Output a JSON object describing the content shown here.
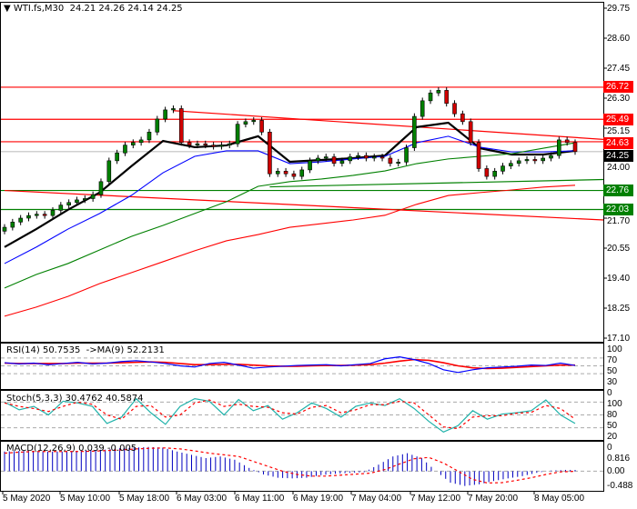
{
  "header": {
    "symbol": "WTI.fs,M30",
    "ohlc": "24.21 24.26 24.14 24.25",
    "menu_icon": "triangle-down-icon"
  },
  "chart_data": {
    "type": "candlestick",
    "price_ticks": [
      "29.75",
      "28.60",
      "27.45",
      "26.30",
      "25.15",
      "24.00",
      "21.70",
      "20.55",
      "19.40",
      "18.25",
      "17.10"
    ],
    "ylim": [
      17.1,
      29.75
    ],
    "closes": [
      21.35,
      21.55,
      21.7,
      21.8,
      21.85,
      21.8,
      22.0,
      22.2,
      22.3,
      22.4,
      22.45,
      22.6,
      23.1,
      23.9,
      24.2,
      24.5,
      24.6,
      24.7,
      25.0,
      25.5,
      25.85,
      25.9,
      24.6,
      24.5,
      24.55,
      24.5,
      24.45,
      24.5,
      24.55,
      25.3,
      25.4,
      25.45,
      25.0,
      23.4,
      23.5,
      23.4,
      23.3,
      23.55,
      23.9,
      24.0,
      24.05,
      23.8,
      23.9,
      24.05,
      24.1,
      24.0,
      24.05,
      24.0,
      23.8,
      23.85,
      24.4,
      25.6,
      26.2,
      26.5,
      26.6,
      26.1,
      25.7,
      25.4,
      24.6,
      23.6,
      23.3,
      23.5,
      23.7,
      23.8,
      23.9,
      23.95,
      23.9,
      24.0,
      24.1,
      24.7,
      24.6,
      24.25
    ],
    "moving_averages": [
      {
        "color": "#000000",
        "values": [
          20.59,
          21.28,
          22.02,
          22.68,
          23.69,
          24.66,
          24.42,
          24.49,
          24.84,
          23.86,
          23.93,
          24.0,
          24.1,
          25.19,
          25.36,
          24.38,
          24.14,
          24.14,
          24.28
        ]
      },
      {
        "color": "#0000ff",
        "values": [
          19.96,
          20.59,
          21.28,
          21.88,
          22.57,
          23.44,
          24.07,
          24.28,
          24.28,
          23.79,
          23.86,
          23.97,
          24.07,
          24.59,
          24.84,
          24.42,
          24.24,
          24.24,
          24.28
        ]
      },
      {
        "color": "#008000",
        "values": [
          19.02,
          19.54,
          19.96,
          20.48,
          21.0,
          21.42,
          21.88,
          22.33,
          22.92,
          23.1,
          23.2,
          23.34,
          23.51,
          23.79,
          23.97,
          24.07,
          24.17,
          24.38,
          24.59
        ]
      },
      {
        "color": "#ff0000",
        "values": [
          17.94,
          18.29,
          18.7,
          19.19,
          19.61,
          20.03,
          20.45,
          20.83,
          21.07,
          21.35,
          21.49,
          21.63,
          21.81,
          22.23,
          22.57,
          22.68,
          22.78,
          22.89,
          22.96
        ]
      }
    ],
    "levels": [
      {
        "price": 26.72,
        "label": "26.72",
        "color": "#ff0000"
      },
      {
        "price": 25.49,
        "label": "25.49",
        "color": "#ff0000"
      },
      {
        "price": 24.63,
        "label": "24.63",
        "color": "#ff0000"
      },
      {
        "price": 24.25,
        "label": "24.25",
        "color": "#000000",
        "line": "#c0c0c0"
      },
      {
        "price": 22.76,
        "label": "22.76",
        "color": "#008000"
      },
      {
        "price": 22.03,
        "label": "22.03",
        "color": "#008000"
      }
    ],
    "trendlines": [
      {
        "from_bar": 0,
        "from": 22.76,
        "to": 21.63,
        "color": "#ff0000"
      },
      {
        "from_bar": 21,
        "from": 25.82,
        "to": 24.72,
        "color": "#ff0000"
      },
      {
        "from_bar": 33,
        "from": 22.9,
        "to": 23.18,
        "color": "#008000"
      }
    ],
    "time_labels": [
      "5 May 2020",
      "5 May 10:00",
      "5 May 18:00",
      "6 May 03:00",
      "6 May 11:00",
      "6 May 19:00",
      "7 May 04:00",
      "7 May 12:00",
      "7 May 20:00",
      "8 May 05:00"
    ],
    "rsi": {
      "title": "RSI(14) 50.7535  ->MA(9) 52.2131",
      "ticks": [
        "100",
        "70",
        "50",
        "30",
        "0"
      ],
      "values": [
        58,
        55,
        57,
        53,
        56,
        59,
        55,
        57,
        61,
        63,
        60,
        56,
        50,
        47,
        56,
        59,
        52,
        44,
        47,
        49,
        51,
        52,
        53,
        50,
        53,
        56,
        68,
        73,
        66,
        56,
        40,
        33,
        40,
        45,
        47,
        49,
        52,
        51,
        57,
        51
      ],
      "ma": [
        57,
        56,
        56,
        56,
        56,
        57,
        57,
        57,
        58,
        59,
        60,
        59,
        56,
        53,
        53,
        54,
        54,
        52,
        50,
        49,
        49,
        50,
        51,
        51,
        52,
        53,
        57,
        62,
        66,
        64,
        58,
        50,
        45,
        43,
        44,
        46,
        48,
        50,
        52,
        52
      ]
    },
    "stoch": {
      "title": "Stoch(5,3,3) 30.4762 40.5874",
      "ticks": [
        "100",
        "80",
        "50",
        "20",
        "0"
      ],
      "main": [
        80,
        62,
        70,
        50,
        82,
        78,
        70,
        30,
        45,
        88,
        55,
        28,
        70,
        88,
        82,
        50,
        86,
        60,
        72,
        40,
        55,
        78,
        65,
        45,
        70,
        78,
        72,
        88,
        65,
        35,
        10,
        25,
        60,
        40,
        52,
        55,
        60,
        85,
        50,
        30
      ],
      "signal": [
        78,
        70,
        65,
        58,
        70,
        80,
        75,
        50,
        40,
        70,
        72,
        45,
        50,
        78,
        85,
        70,
        75,
        70,
        68,
        55,
        52,
        68,
        72,
        55,
        62,
        74,
        74,
        82,
        78,
        50,
        22,
        18,
        45,
        48,
        48,
        54,
        56,
        72,
        65,
        40
      ]
    },
    "macd": {
      "title": "MACD(12,26,9) 0.039 -0.005",
      "ticks": [
        "0.816",
        "0.00",
        "-0.488"
      ],
      "hist": [
        0.6,
        0.62,
        0.62,
        0.6,
        0.6,
        0.62,
        0.64,
        0.66,
        0.7,
        0.72,
        0.74,
        0.72,
        0.6,
        0.5,
        0.4,
        0.45,
        0.35,
        0.1,
        -0.1,
        -0.2,
        -0.22,
        -0.2,
        -0.12,
        -0.08,
        -0.05,
        -0.03,
        0.2,
        0.45,
        0.55,
        0.4,
        0.0,
        -0.35,
        -0.45,
        -0.4,
        -0.3,
        -0.22,
        -0.15,
        -0.05,
        0.02,
        0.04
      ],
      "signal": [
        0.55,
        0.58,
        0.6,
        0.6,
        0.6,
        0.6,
        0.61,
        0.63,
        0.65,
        0.68,
        0.7,
        0.71,
        0.68,
        0.62,
        0.55,
        0.5,
        0.45,
        0.3,
        0.15,
        0.0,
        -0.1,
        -0.15,
        -0.15,
        -0.12,
        -0.09,
        -0.06,
        0.05,
        0.22,
        0.38,
        0.42,
        0.25,
        0.0,
        -0.25,
        -0.36,
        -0.35,
        -0.28,
        -0.2,
        -0.1,
        -0.02,
        -0.005
      ]
    }
  }
}
